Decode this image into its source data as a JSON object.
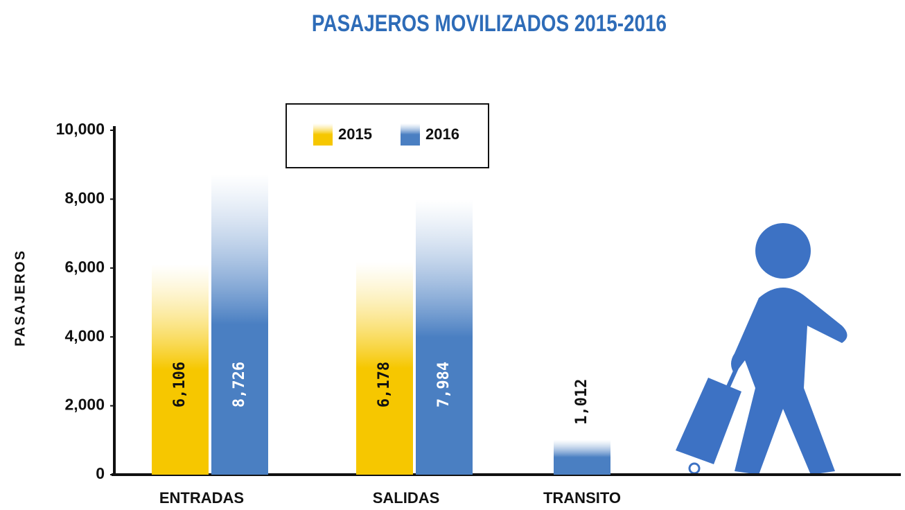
{
  "chart_data": {
    "type": "bar",
    "title": "PASAJEROS MOVILIZADOS 2015-2016",
    "y_label": "PASAJEROS",
    "categories": [
      "ENTRADAS",
      "SALIDAS",
      "TRANSITO"
    ],
    "series": [
      {
        "name": "2015",
        "color": "#f6c700",
        "values": [
          6106,
          6178,
          null
        ],
        "value_labels": [
          "6,106",
          "6,178",
          null
        ]
      },
      {
        "name": "2016",
        "color": "#4a7fc2",
        "values": [
          8726,
          7984,
          1012
        ],
        "value_labels": [
          "8,726",
          "7,984",
          "1,012"
        ]
      }
    ],
    "ylim": [
      0,
      10000
    ],
    "yticks": [
      0,
      {
        "value": 2000,
        "label": "2,000"
      },
      {
        "value": 4000,
        "label": "4,000"
      },
      {
        "value": 6000,
        "label": "6,000"
      },
      {
        "value": 8000,
        "label": "8,000"
      },
      {
        "value": 10000,
        "label": "10,000"
      }
    ],
    "legend": "top"
  }
}
